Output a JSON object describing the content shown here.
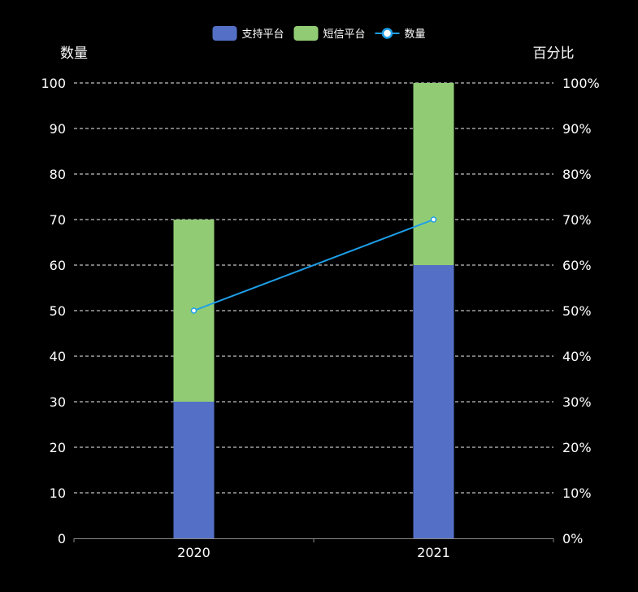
{
  "chart_data": {
    "type": "bar",
    "categories": [
      "2020",
      "2021"
    ],
    "series": [
      {
        "name": "支持平台",
        "type": "bar",
        "stack": "total",
        "values": [
          30,
          60
        ],
        "color": "#5470c6"
      },
      {
        "name": "短信平台",
        "type": "bar",
        "stack": "total",
        "values": [
          40,
          40
        ],
        "color": "#91cc75"
      },
      {
        "name": "数量",
        "type": "line",
        "axis": "right",
        "values": [
          50,
          70
        ],
        "color": "#1e9fe8"
      }
    ],
    "y_left": {
      "label": "数量",
      "ylim": [
        0,
        100
      ],
      "ticks": [
        "0",
        "10",
        "20",
        "30",
        "40",
        "50",
        "60",
        "70",
        "80",
        "90",
        "100"
      ]
    },
    "y_right": {
      "label": "百分比",
      "ylim": [
        0,
        100
      ],
      "ticks": [
        "0%",
        "10%",
        "20%",
        "30%",
        "40%",
        "50%",
        "60%",
        "70%",
        "80%",
        "90%",
        "100%"
      ]
    },
    "grid": true,
    "legend": "top-center",
    "colors": {
      "background": "#000000",
      "text": "#ffffff",
      "grid": "#ffffff",
      "axis": "#888888"
    }
  }
}
